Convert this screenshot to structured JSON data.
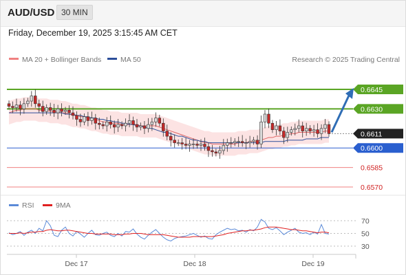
{
  "header": {
    "symbol": "AUD/USD",
    "timeframe": "30 MIN"
  },
  "datetime": "Friday, December 19, 2025 3:15:45 AM CET",
  "legend": {
    "ma20": "MA 20 + Bollinger Bands",
    "ma50": "MA 50",
    "copyright": "Research © 2025 Trading Central",
    "rsi": "RSI",
    "rsi_ma": "9MA"
  },
  "colors": {
    "resistance": "#5aa524",
    "support_main": "#2a5fcf",
    "support_minor": "#f08080",
    "current": "#222222",
    "ma20": "#e06666",
    "ma50": "#2b4e9a",
    "bollinger_fill": "#fbdede",
    "arrow": "#2f6db5",
    "rsi": "#5b8ad8",
    "rsi_ma": "#e02020",
    "candle_up": "#d9d9d9",
    "candle_down": "#c62828"
  },
  "levels": [
    {
      "label": "0.6645",
      "value": 0.6645,
      "kind": "resistance"
    },
    {
      "label": "0.6630",
      "value": 0.663,
      "kind": "resistance"
    },
    {
      "label": "0.6611",
      "value": 0.6611,
      "kind": "current"
    },
    {
      "label": "0.6600",
      "value": 0.66,
      "kind": "support_main"
    },
    {
      "label": "0.6585",
      "value": 0.6585,
      "kind": "support_minor"
    },
    {
      "label": "0.6570",
      "value": 0.657,
      "kind": "support_minor"
    }
  ],
  "chart_data": [
    {
      "type": "candlestick",
      "title": "AUD/USD 30 MIN",
      "x_tick_labels": [
        "Dec 17",
        "Dec 18",
        "Dec 19"
      ],
      "price_range": [
        0.6565,
        0.6655
      ],
      "close": [
        0.6632,
        0.6631,
        0.6633,
        0.663,
        0.6634,
        0.6636,
        0.664,
        0.6634,
        0.6632,
        0.6628,
        0.6631,
        0.6629,
        0.6627,
        0.663,
        0.6628,
        0.6629,
        0.6627,
        0.6625,
        0.6622,
        0.662,
        0.6624,
        0.6621,
        0.6623,
        0.6619,
        0.6618,
        0.6617,
        0.662,
        0.6618,
        0.6616,
        0.6618,
        0.6617,
        0.6619,
        0.6621,
        0.6618,
        0.6616,
        0.6617,
        0.6615,
        0.6618,
        0.662,
        0.6623,
        0.6619,
        0.6613,
        0.6609,
        0.6606,
        0.6604,
        0.6604,
        0.6603,
        0.6602,
        0.6603,
        0.6603,
        0.6602,
        0.6603,
        0.6601,
        0.6598,
        0.6597,
        0.6596,
        0.6598,
        0.6602,
        0.6604,
        0.6604,
        0.6605,
        0.6605,
        0.6604,
        0.6604,
        0.6605,
        0.6606,
        0.6603,
        0.662,
        0.6626,
        0.6619,
        0.6614,
        0.6617,
        0.6613,
        0.6608,
        0.6612,
        0.6614,
        0.6615,
        0.6617,
        0.6613,
        0.6615,
        0.6613,
        0.6614,
        0.6611,
        0.6615,
        0.6618,
        0.6611
      ],
      "ma20": [
        0.6627,
        0.6628,
        0.6629,
        0.6629,
        0.663,
        0.663,
        0.663,
        0.663,
        0.6629,
        0.6629,
        0.6629,
        0.6628,
        0.6628,
        0.6628,
        0.6627,
        0.6627,
        0.6626,
        0.6625,
        0.6625,
        0.6624,
        0.6624,
        0.6623,
        0.6622,
        0.6622,
        0.6621,
        0.662,
        0.662,
        0.6619,
        0.6619,
        0.6619,
        0.6618,
        0.6618,
        0.6618,
        0.6618,
        0.6618,
        0.6617,
        0.6617,
        0.6617,
        0.6617,
        0.6617,
        0.6616,
        0.6615,
        0.6614,
        0.6613,
        0.6612,
        0.6611,
        0.661,
        0.6609,
        0.6608,
        0.6607,
        0.6606,
        0.6605,
        0.6604,
        0.6604,
        0.6603,
        0.6603,
        0.6603,
        0.6603,
        0.6603,
        0.6603,
        0.6603,
        0.6604,
        0.6604,
        0.6604,
        0.6605,
        0.6605,
        0.6605,
        0.6606,
        0.6607,
        0.6608,
        0.6608,
        0.6609,
        0.6609,
        0.661,
        0.661,
        0.6611,
        0.6611,
        0.6612,
        0.6612,
        0.6612,
        0.6612,
        0.6612,
        0.6612,
        0.6612,
        0.6613,
        0.6613
      ],
      "ma50": [
        0.6627,
        0.6627,
        0.6627,
        0.6627,
        0.6627,
        0.6627,
        0.6627,
        0.6627,
        0.6627,
        0.6627,
        0.6627,
        0.6627,
        0.6627,
        0.6627,
        0.6627,
        0.6626,
        0.6626,
        0.6626,
        0.6625,
        0.6625,
        0.6624,
        0.6624,
        0.6623,
        0.6623,
        0.6622,
        0.6622,
        0.6621,
        0.6621,
        0.662,
        0.662,
        0.6619,
        0.6619,
        0.6618,
        0.6618,
        0.6617,
        0.6617,
        0.6616,
        0.6615,
        0.6615,
        0.6614,
        0.6613,
        0.6612,
        0.6612,
        0.6611,
        0.661,
        0.6609,
        0.6609,
        0.6608,
        0.6607,
        0.6606,
        0.6606,
        0.6605,
        0.6605,
        0.6604,
        0.6604,
        0.6604,
        0.6604,
        0.6604,
        0.6604,
        0.6604,
        0.6604,
        0.6604,
        0.6604,
        0.6604,
        0.6604,
        0.6604,
        0.6604,
        0.6604,
        0.6605,
        0.6605,
        0.6605,
        0.6605,
        0.6605,
        0.6605,
        0.6606,
        0.6606,
        0.6606,
        0.6606,
        0.6606,
        0.6607,
        0.6607,
        0.6607,
        0.6607,
        0.6608,
        0.6608,
        0.6608
      ],
      "bollinger_width": 0.0009,
      "projection": {
        "from": 0.6611,
        "to": 0.6645
      }
    },
    {
      "type": "line",
      "title": "RSI",
      "y_ticks": [
        70,
        50,
        30
      ],
      "y_range": [
        20,
        80
      ],
      "rsi": [
        51,
        48,
        50,
        53,
        47,
        52,
        55,
        50,
        58,
        54,
        70,
        62,
        47,
        45,
        55,
        60,
        50,
        46,
        53,
        49,
        44,
        50,
        55,
        48,
        47,
        50,
        52,
        47,
        45,
        50,
        46,
        53,
        52,
        57,
        49,
        44,
        41,
        47,
        52,
        56,
        50,
        44,
        40,
        38,
        42,
        44,
        45,
        46,
        48,
        50,
        47,
        44,
        46,
        42,
        41,
        48,
        52,
        55,
        58,
        56,
        57,
        54,
        55,
        52,
        56,
        54,
        60,
        72,
        68,
        58,
        56,
        59,
        54,
        48,
        52,
        55,
        58,
        52,
        50,
        51,
        48,
        52,
        49,
        64,
        50,
        49
      ],
      "rsi_ma": [
        50,
        50,
        50,
        51,
        50,
        51,
        52,
        52,
        53,
        53,
        55,
        56,
        55,
        54,
        54,
        55,
        55,
        54,
        53,
        52,
        51,
        50,
        50,
        49,
        49,
        49,
        49,
        49,
        48,
        48,
        48,
        49,
        49,
        50,
        50,
        50,
        49,
        48,
        48,
        48,
        48,
        48,
        47,
        46,
        45,
        44,
        44,
        44,
        44,
        45,
        45,
        45,
        45,
        45,
        45,
        46,
        47,
        48,
        50,
        51,
        52,
        53,
        54,
        54,
        55,
        55,
        56,
        57,
        59,
        60,
        60,
        60,
        59,
        58,
        57,
        56,
        56,
        55,
        54,
        54,
        53,
        52,
        51,
        52,
        52,
        51
      ]
    }
  ]
}
